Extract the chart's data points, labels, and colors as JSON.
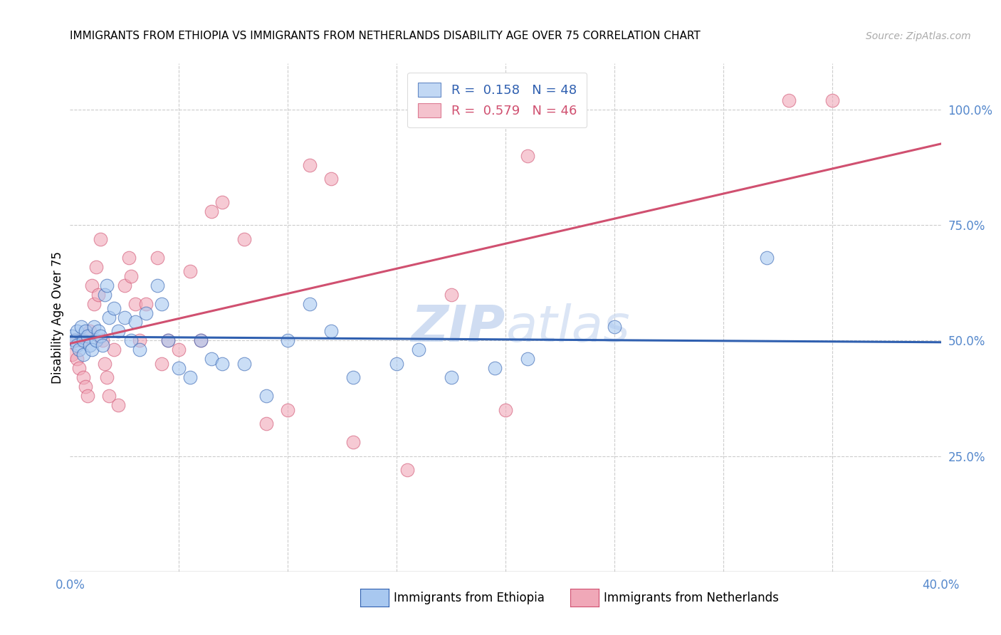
{
  "title": "IMMIGRANTS FROM ETHIOPIA VS IMMIGRANTS FROM NETHERLANDS DISABILITY AGE OVER 75 CORRELATION CHART",
  "source": "Source: ZipAtlas.com",
  "ylabel": "Disability Age Over 75",
  "legend_labels": [
    "Immigrants from Ethiopia",
    "Immigrants from Netherlands"
  ],
  "legend_R": [
    0.158,
    0.579
  ],
  "legend_N": [
    48,
    46
  ],
  "xmin": 0.0,
  "xmax": 0.4,
  "ymin": 0.0,
  "ymax": 1.1,
  "ytick_vals": [
    0.25,
    0.5,
    0.75,
    1.0
  ],
  "ytick_labels": [
    "25.0%",
    "50.0%",
    "75.0%",
    "100.0%"
  ],
  "xtick_vals": [
    0.0,
    0.05,
    0.1,
    0.15,
    0.2,
    0.25,
    0.3,
    0.35,
    0.4
  ],
  "xtick_labels": [
    "0.0%",
    "",
    "",
    "",
    "",
    "",
    "",
    "",
    "40.0%"
  ],
  "color_blue": "#a8c8f0",
  "color_pink": "#f0a8b8",
  "line_color_blue": "#3060b0",
  "line_color_pink": "#d05070",
  "watermark_color": "#c8d8f0",
  "blue_x": [
    0.001,
    0.002,
    0.003,
    0.003,
    0.004,
    0.005,
    0.006,
    0.006,
    0.007,
    0.008,
    0.009,
    0.01,
    0.011,
    0.012,
    0.013,
    0.014,
    0.015,
    0.016,
    0.017,
    0.018,
    0.02,
    0.022,
    0.025,
    0.028,
    0.03,
    0.032,
    0.035,
    0.04,
    0.042,
    0.045,
    0.05,
    0.055,
    0.06,
    0.065,
    0.07,
    0.08,
    0.09,
    0.1,
    0.11,
    0.12,
    0.13,
    0.15,
    0.16,
    0.175,
    0.195,
    0.21,
    0.25,
    0.32
  ],
  "blue_y": [
    0.51,
    0.5,
    0.49,
    0.52,
    0.48,
    0.53,
    0.5,
    0.47,
    0.52,
    0.51,
    0.49,
    0.48,
    0.53,
    0.5,
    0.52,
    0.51,
    0.49,
    0.6,
    0.62,
    0.55,
    0.57,
    0.52,
    0.55,
    0.5,
    0.54,
    0.48,
    0.56,
    0.62,
    0.58,
    0.5,
    0.44,
    0.42,
    0.5,
    0.46,
    0.45,
    0.45,
    0.38,
    0.5,
    0.58,
    0.52,
    0.42,
    0.45,
    0.48,
    0.42,
    0.44,
    0.46,
    0.53,
    0.68
  ],
  "pink_x": [
    0.001,
    0.002,
    0.003,
    0.004,
    0.005,
    0.006,
    0.007,
    0.008,
    0.009,
    0.01,
    0.011,
    0.012,
    0.013,
    0.014,
    0.015,
    0.016,
    0.017,
    0.018,
    0.02,
    0.022,
    0.025,
    0.027,
    0.028,
    0.03,
    0.032,
    0.035,
    0.04,
    0.042,
    0.045,
    0.05,
    0.055,
    0.06,
    0.065,
    0.07,
    0.08,
    0.09,
    0.1,
    0.11,
    0.12,
    0.13,
    0.155,
    0.175,
    0.2,
    0.21,
    0.33,
    0.35
  ],
  "pink_y": [
    0.47,
    0.5,
    0.46,
    0.44,
    0.5,
    0.42,
    0.4,
    0.38,
    0.52,
    0.62,
    0.58,
    0.66,
    0.6,
    0.72,
    0.5,
    0.45,
    0.42,
    0.38,
    0.48,
    0.36,
    0.62,
    0.68,
    0.64,
    0.58,
    0.5,
    0.58,
    0.68,
    0.45,
    0.5,
    0.48,
    0.65,
    0.5,
    0.78,
    0.8,
    0.72,
    0.32,
    0.35,
    0.88,
    0.85,
    0.28,
    0.22,
    0.6,
    0.35,
    0.9,
    1.02,
    1.02
  ]
}
